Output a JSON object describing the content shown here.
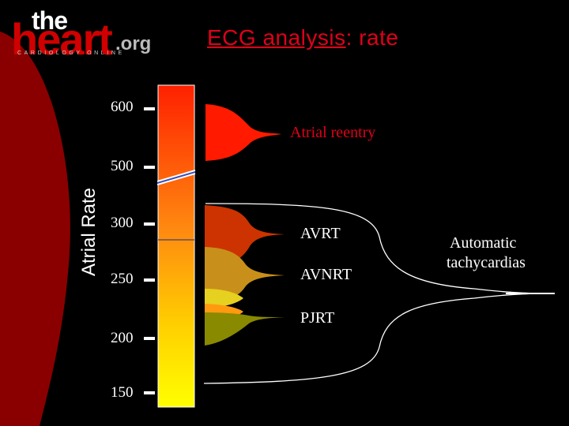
{
  "logo": {
    "the": "the",
    "heart": "heart",
    "org": ".org",
    "tagline": "CARDIOLOGY ONLINE"
  },
  "title": {
    "part1": "ECG analysis",
    "part2": ": rate"
  },
  "axis": {
    "label": "Atrial Rate",
    "ticks": [
      "600",
      "500",
      "300",
      "250",
      "200",
      "150"
    ]
  },
  "annotations": {
    "atrial_reentry": "Atrial reentry",
    "avrt": "AVRT",
    "avnrt": "AVNRT",
    "pjrt": "PJRT",
    "automatic_line1": "Automatic",
    "automatic_line2": "tachycardias"
  },
  "colors": {
    "background": "#000000",
    "title": "#e0001a",
    "atrial_reentry": "#ff1a00",
    "avrt": "#cc3300",
    "avnrt": "#c8901a",
    "pjrt": "#8a8a00"
  }
}
